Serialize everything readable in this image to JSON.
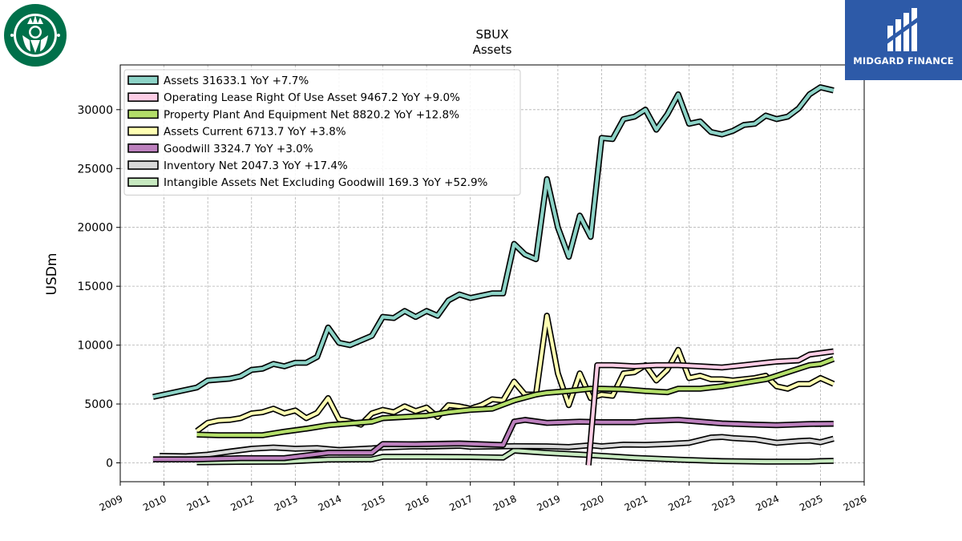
{
  "branding": {
    "company_logo": "starbucks-siren-logo",
    "publisher": "MIDGARD FINANCE",
    "publisher_logo": "midgard-finance-logo"
  },
  "chart_data": {
    "type": "line",
    "title": "SBUX",
    "subtitle": "Assets",
    "xlabel": "",
    "ylabel": "USDm",
    "xlim": [
      2009.0,
      2026.0
    ],
    "ylim": [
      -1600,
      33800
    ],
    "x_ticks": [
      2009,
      2010,
      2011,
      2012,
      2013,
      2014,
      2015,
      2016,
      2017,
      2018,
      2019,
      2020,
      2021,
      2022,
      2023,
      2024,
      2025,
      2026
    ],
    "y_ticks": [
      0,
      5000,
      10000,
      15000,
      20000,
      25000,
      30000
    ],
    "grid": true,
    "legend_position": "top-left",
    "series": [
      {
        "name": "Intangible Assets Net Excluding Goodwill",
        "legend": "Intangible Assets Net Excluding Goodwill  169.3 YoY +52.9%",
        "color": "#c7e9c0",
        "points": [
          [
            2010.75,
            50
          ],
          [
            2011.75,
            80
          ],
          [
            2012.75,
            100
          ],
          [
            2013.75,
            280
          ],
          [
            2014.75,
            300
          ],
          [
            2015.0,
            520
          ],
          [
            2016.0,
            520
          ],
          [
            2017.0,
            500
          ],
          [
            2017.75,
            450
          ],
          [
            2018.0,
            1040
          ],
          [
            2018.75,
            850
          ],
          [
            2019.75,
            650
          ],
          [
            2020.75,
            430
          ],
          [
            2021.75,
            270
          ],
          [
            2022.75,
            150
          ],
          [
            2023.75,
            100
          ],
          [
            2024.75,
            110
          ],
          [
            2025.0,
            150
          ],
          [
            2025.3,
            169.3
          ]
        ]
      },
      {
        "name": "Inventory Net",
        "legend": "Inventory Net  2047.3 YoY +17.4%",
        "color": "#d9d9d9",
        "points": [
          [
            2009.9,
            600
          ],
          [
            2010.5,
            560
          ],
          [
            2011.0,
            700
          ],
          [
            2011.5,
            960
          ],
          [
            2012.0,
            1200
          ],
          [
            2012.5,
            1300
          ],
          [
            2013.0,
            1200
          ],
          [
            2013.5,
            1250
          ],
          [
            2014.0,
            1090
          ],
          [
            2014.75,
            1230
          ],
          [
            2015.0,
            1300
          ],
          [
            2015.75,
            1400
          ],
          [
            2016.0,
            1380
          ],
          [
            2016.75,
            1450
          ],
          [
            2017.0,
            1360
          ],
          [
            2017.75,
            1400
          ],
          [
            2018.0,
            1420
          ],
          [
            2018.75,
            1400
          ],
          [
            2019.25,
            1350
          ],
          [
            2019.75,
            1500
          ],
          [
            2020.0,
            1400
          ],
          [
            2020.5,
            1550
          ],
          [
            2021.0,
            1530
          ],
          [
            2021.5,
            1600
          ],
          [
            2022.0,
            1700
          ],
          [
            2022.5,
            2150
          ],
          [
            2022.75,
            2200
          ],
          [
            2023.0,
            2100
          ],
          [
            2023.5,
            2000
          ],
          [
            2024.0,
            1700
          ],
          [
            2024.5,
            1850
          ],
          [
            2024.75,
            1900
          ],
          [
            2025.0,
            1750
          ],
          [
            2025.3,
            2047.3
          ]
        ]
      },
      {
        "name": "Goodwill",
        "legend": "Goodwill  3324.7 YoY +3.0%",
        "color": "#bc80bd",
        "points": [
          [
            2009.75,
            300
          ],
          [
            2010.75,
            300
          ],
          [
            2011.75,
            400
          ],
          [
            2012.75,
            400
          ],
          [
            2013.75,
            860
          ],
          [
            2014.75,
            860
          ],
          [
            2015.0,
            1600
          ],
          [
            2015.75,
            1580
          ],
          [
            2016.75,
            1650
          ],
          [
            2017.75,
            1520
          ],
          [
            2018.0,
            3500
          ],
          [
            2018.25,
            3650
          ],
          [
            2018.75,
            3400
          ],
          [
            2019.5,
            3500
          ],
          [
            2020.0,
            3450
          ],
          [
            2020.75,
            3450
          ],
          [
            2021.0,
            3550
          ],
          [
            2021.75,
            3650
          ],
          [
            2022.75,
            3350
          ],
          [
            2023.5,
            3250
          ],
          [
            2024.0,
            3200
          ],
          [
            2024.75,
            3300
          ],
          [
            2025.3,
            3324.7
          ]
        ]
      },
      {
        "name": "Assets Current",
        "legend": "Assets Current  6713.7 YoY +3.8%",
        "color": "#ffffb3",
        "points": [
          [
            2010.75,
            2700
          ],
          [
            2011.0,
            3400
          ],
          [
            2011.25,
            3600
          ],
          [
            2011.5,
            3650
          ],
          [
            2011.75,
            3800
          ],
          [
            2012.0,
            4200
          ],
          [
            2012.25,
            4300
          ],
          [
            2012.5,
            4600
          ],
          [
            2012.75,
            4200
          ],
          [
            2013.0,
            4450
          ],
          [
            2013.25,
            3800
          ],
          [
            2013.5,
            4250
          ],
          [
            2013.75,
            5500
          ],
          [
            2014.0,
            3700
          ],
          [
            2014.25,
            3500
          ],
          [
            2014.5,
            3250
          ],
          [
            2014.75,
            4200
          ],
          [
            2015.0,
            4500
          ],
          [
            2015.25,
            4300
          ],
          [
            2015.5,
            4800
          ],
          [
            2015.75,
            4400
          ],
          [
            2016.0,
            4700
          ],
          [
            2016.25,
            3900
          ],
          [
            2016.5,
            4900
          ],
          [
            2016.75,
            4800
          ],
          [
            2017.0,
            4600
          ],
          [
            2017.25,
            4900
          ],
          [
            2017.5,
            5400
          ],
          [
            2017.75,
            5300
          ],
          [
            2018.0,
            6900
          ],
          [
            2018.25,
            5800
          ],
          [
            2018.5,
            5800
          ],
          [
            2018.75,
            12500
          ],
          [
            2019.0,
            7600
          ],
          [
            2019.25,
            4900
          ],
          [
            2019.5,
            7600
          ],
          [
            2019.75,
            5500
          ],
          [
            2020.0,
            5800
          ],
          [
            2020.25,
            5700
          ],
          [
            2020.5,
            7600
          ],
          [
            2020.75,
            7700
          ],
          [
            2021.0,
            8300
          ],
          [
            2021.25,
            7000
          ],
          [
            2021.5,
            7900
          ],
          [
            2021.75,
            9600
          ],
          [
            2022.0,
            7200
          ],
          [
            2022.25,
            7400
          ],
          [
            2022.5,
            7100
          ],
          [
            2022.75,
            7100
          ],
          [
            2023.0,
            7000
          ],
          [
            2023.5,
            7200
          ],
          [
            2023.75,
            7400
          ],
          [
            2024.0,
            6500
          ],
          [
            2024.25,
            6300
          ],
          [
            2024.5,
            6700
          ],
          [
            2024.75,
            6700
          ],
          [
            2025.0,
            7200
          ],
          [
            2025.3,
            6713.7
          ]
        ]
      },
      {
        "name": "Property Plant And Equipment Net",
        "legend": "Property Plant And Equipment Net  8820.2 YoY +12.8%",
        "color": "#b3de69",
        "points": [
          [
            2010.75,
            2400
          ],
          [
            2011.25,
            2350
          ],
          [
            2011.75,
            2350
          ],
          [
            2012.25,
            2350
          ],
          [
            2012.75,
            2650
          ],
          [
            2013.25,
            2900
          ],
          [
            2013.75,
            3200
          ],
          [
            2014.25,
            3350
          ],
          [
            2014.75,
            3500
          ],
          [
            2015.0,
            3800
          ],
          [
            2015.5,
            3900
          ],
          [
            2016.0,
            4000
          ],
          [
            2016.5,
            4300
          ],
          [
            2017.0,
            4500
          ],
          [
            2017.5,
            4600
          ],
          [
            2018.0,
            5300
          ],
          [
            2018.5,
            5800
          ],
          [
            2018.75,
            5950
          ],
          [
            2019.25,
            6100
          ],
          [
            2019.75,
            6300
          ],
          [
            2020.0,
            6300
          ],
          [
            2020.5,
            6250
          ],
          [
            2021.0,
            6100
          ],
          [
            2021.5,
            6000
          ],
          [
            2021.75,
            6300
          ],
          [
            2022.25,
            6300
          ],
          [
            2022.75,
            6500
          ],
          [
            2023.25,
            6800
          ],
          [
            2023.75,
            7100
          ],
          [
            2024.25,
            7700
          ],
          [
            2024.75,
            8300
          ],
          [
            2025.0,
            8400
          ],
          [
            2025.3,
            8820.2
          ]
        ]
      },
      {
        "name": "Operating Lease Right Of Use Asset",
        "legend": "Operating Lease Right Of Use Asset  9467.2 YoY +9.0%",
        "color": "#fccde5",
        "points": [
          [
            2019.7,
            -200
          ],
          [
            2019.9,
            8300
          ],
          [
            2020.25,
            8300
          ],
          [
            2020.75,
            8200
          ],
          [
            2021.25,
            8300
          ],
          [
            2021.75,
            8300
          ],
          [
            2022.25,
            8200
          ],
          [
            2022.75,
            8100
          ],
          [
            2023.25,
            8300
          ],
          [
            2023.75,
            8500
          ],
          [
            2024.0,
            8600
          ],
          [
            2024.5,
            8700
          ],
          [
            2024.75,
            9200
          ],
          [
            2025.3,
            9467.2
          ]
        ]
      },
      {
        "name": "Assets",
        "legend": "Assets  31633.1 YoY +7.7%",
        "color": "#8dd3c7",
        "points": [
          [
            2009.75,
            5600
          ],
          [
            2010.75,
            6400
          ],
          [
            2011.0,
            7000
          ],
          [
            2011.5,
            7150
          ],
          [
            2011.75,
            7350
          ],
          [
            2012.0,
            7900
          ],
          [
            2012.25,
            8000
          ],
          [
            2012.5,
            8400
          ],
          [
            2012.75,
            8200
          ],
          [
            2013.0,
            8500
          ],
          [
            2013.25,
            8500
          ],
          [
            2013.5,
            9000
          ],
          [
            2013.75,
            11500
          ],
          [
            2014.0,
            10200
          ],
          [
            2014.25,
            10000
          ],
          [
            2014.75,
            10800
          ],
          [
            2015.0,
            12400
          ],
          [
            2015.25,
            12300
          ],
          [
            2015.5,
            12900
          ],
          [
            2015.75,
            12400
          ],
          [
            2016.0,
            12900
          ],
          [
            2016.25,
            12500
          ],
          [
            2016.5,
            13800
          ],
          [
            2016.75,
            14300
          ],
          [
            2017.0,
            14000
          ],
          [
            2017.5,
            14400
          ],
          [
            2017.75,
            14400
          ],
          [
            2018.0,
            18600
          ],
          [
            2018.25,
            17700
          ],
          [
            2018.5,
            17300
          ],
          [
            2018.75,
            24100
          ],
          [
            2019.0,
            20000
          ],
          [
            2019.25,
            17500
          ],
          [
            2019.5,
            21000
          ],
          [
            2019.75,
            19200
          ],
          [
            2020.0,
            27600
          ],
          [
            2020.25,
            27500
          ],
          [
            2020.5,
            29200
          ],
          [
            2020.75,
            29400
          ],
          [
            2021.0,
            30000
          ],
          [
            2021.25,
            28300
          ],
          [
            2021.5,
            29600
          ],
          [
            2021.75,
            31300
          ],
          [
            2022.0,
            28800
          ],
          [
            2022.25,
            29000
          ],
          [
            2022.5,
            28100
          ],
          [
            2022.75,
            27900
          ],
          [
            2023.0,
            28200
          ],
          [
            2023.25,
            28700
          ],
          [
            2023.5,
            28800
          ],
          [
            2023.75,
            29500
          ],
          [
            2024.0,
            29200
          ],
          [
            2024.25,
            29400
          ],
          [
            2024.5,
            30100
          ],
          [
            2024.75,
            31300
          ],
          [
            2025.0,
            31900
          ],
          [
            2025.3,
            31633.1
          ]
        ]
      }
    ]
  }
}
